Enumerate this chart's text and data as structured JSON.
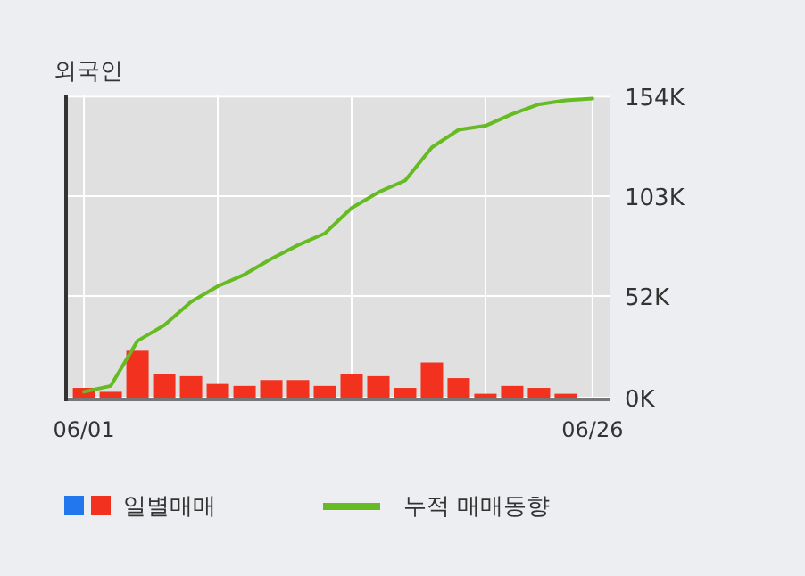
{
  "chart_data": {
    "type": "bar",
    "title": "외국인",
    "categories": [
      "06/01",
      null,
      null,
      null,
      null,
      null,
      null,
      null,
      null,
      null,
      null,
      null,
      null,
      null,
      null,
      null,
      null,
      null,
      null,
      "06/26"
    ],
    "series": [
      {
        "name": "일별매매",
        "color": "#f2321e",
        "values": [
          5,
          3,
          24,
          12,
          11,
          7,
          6,
          9,
          9,
          6,
          12,
          11,
          5,
          18,
          10,
          2,
          6,
          5,
          2,
          0
        ]
      },
      {
        "name": "누적 매매동향",
        "type": "line",
        "color": "#66bb22",
        "values": [
          3,
          6,
          29,
          37,
          49,
          57,
          63,
          71,
          78,
          84,
          97,
          105,
          111,
          128,
          137,
          139,
          145,
          150,
          152,
          153
        ]
      }
    ],
    "ylim": [
      0,
      155
    ],
    "yticks": [
      {
        "value": 0,
        "label": "0K"
      },
      {
        "value": 52,
        "label": "52K"
      },
      {
        "value": 103,
        "label": "103K"
      },
      {
        "value": 154,
        "label": "154K"
      }
    ],
    "grid": true,
    "legend": "bottom"
  }
}
